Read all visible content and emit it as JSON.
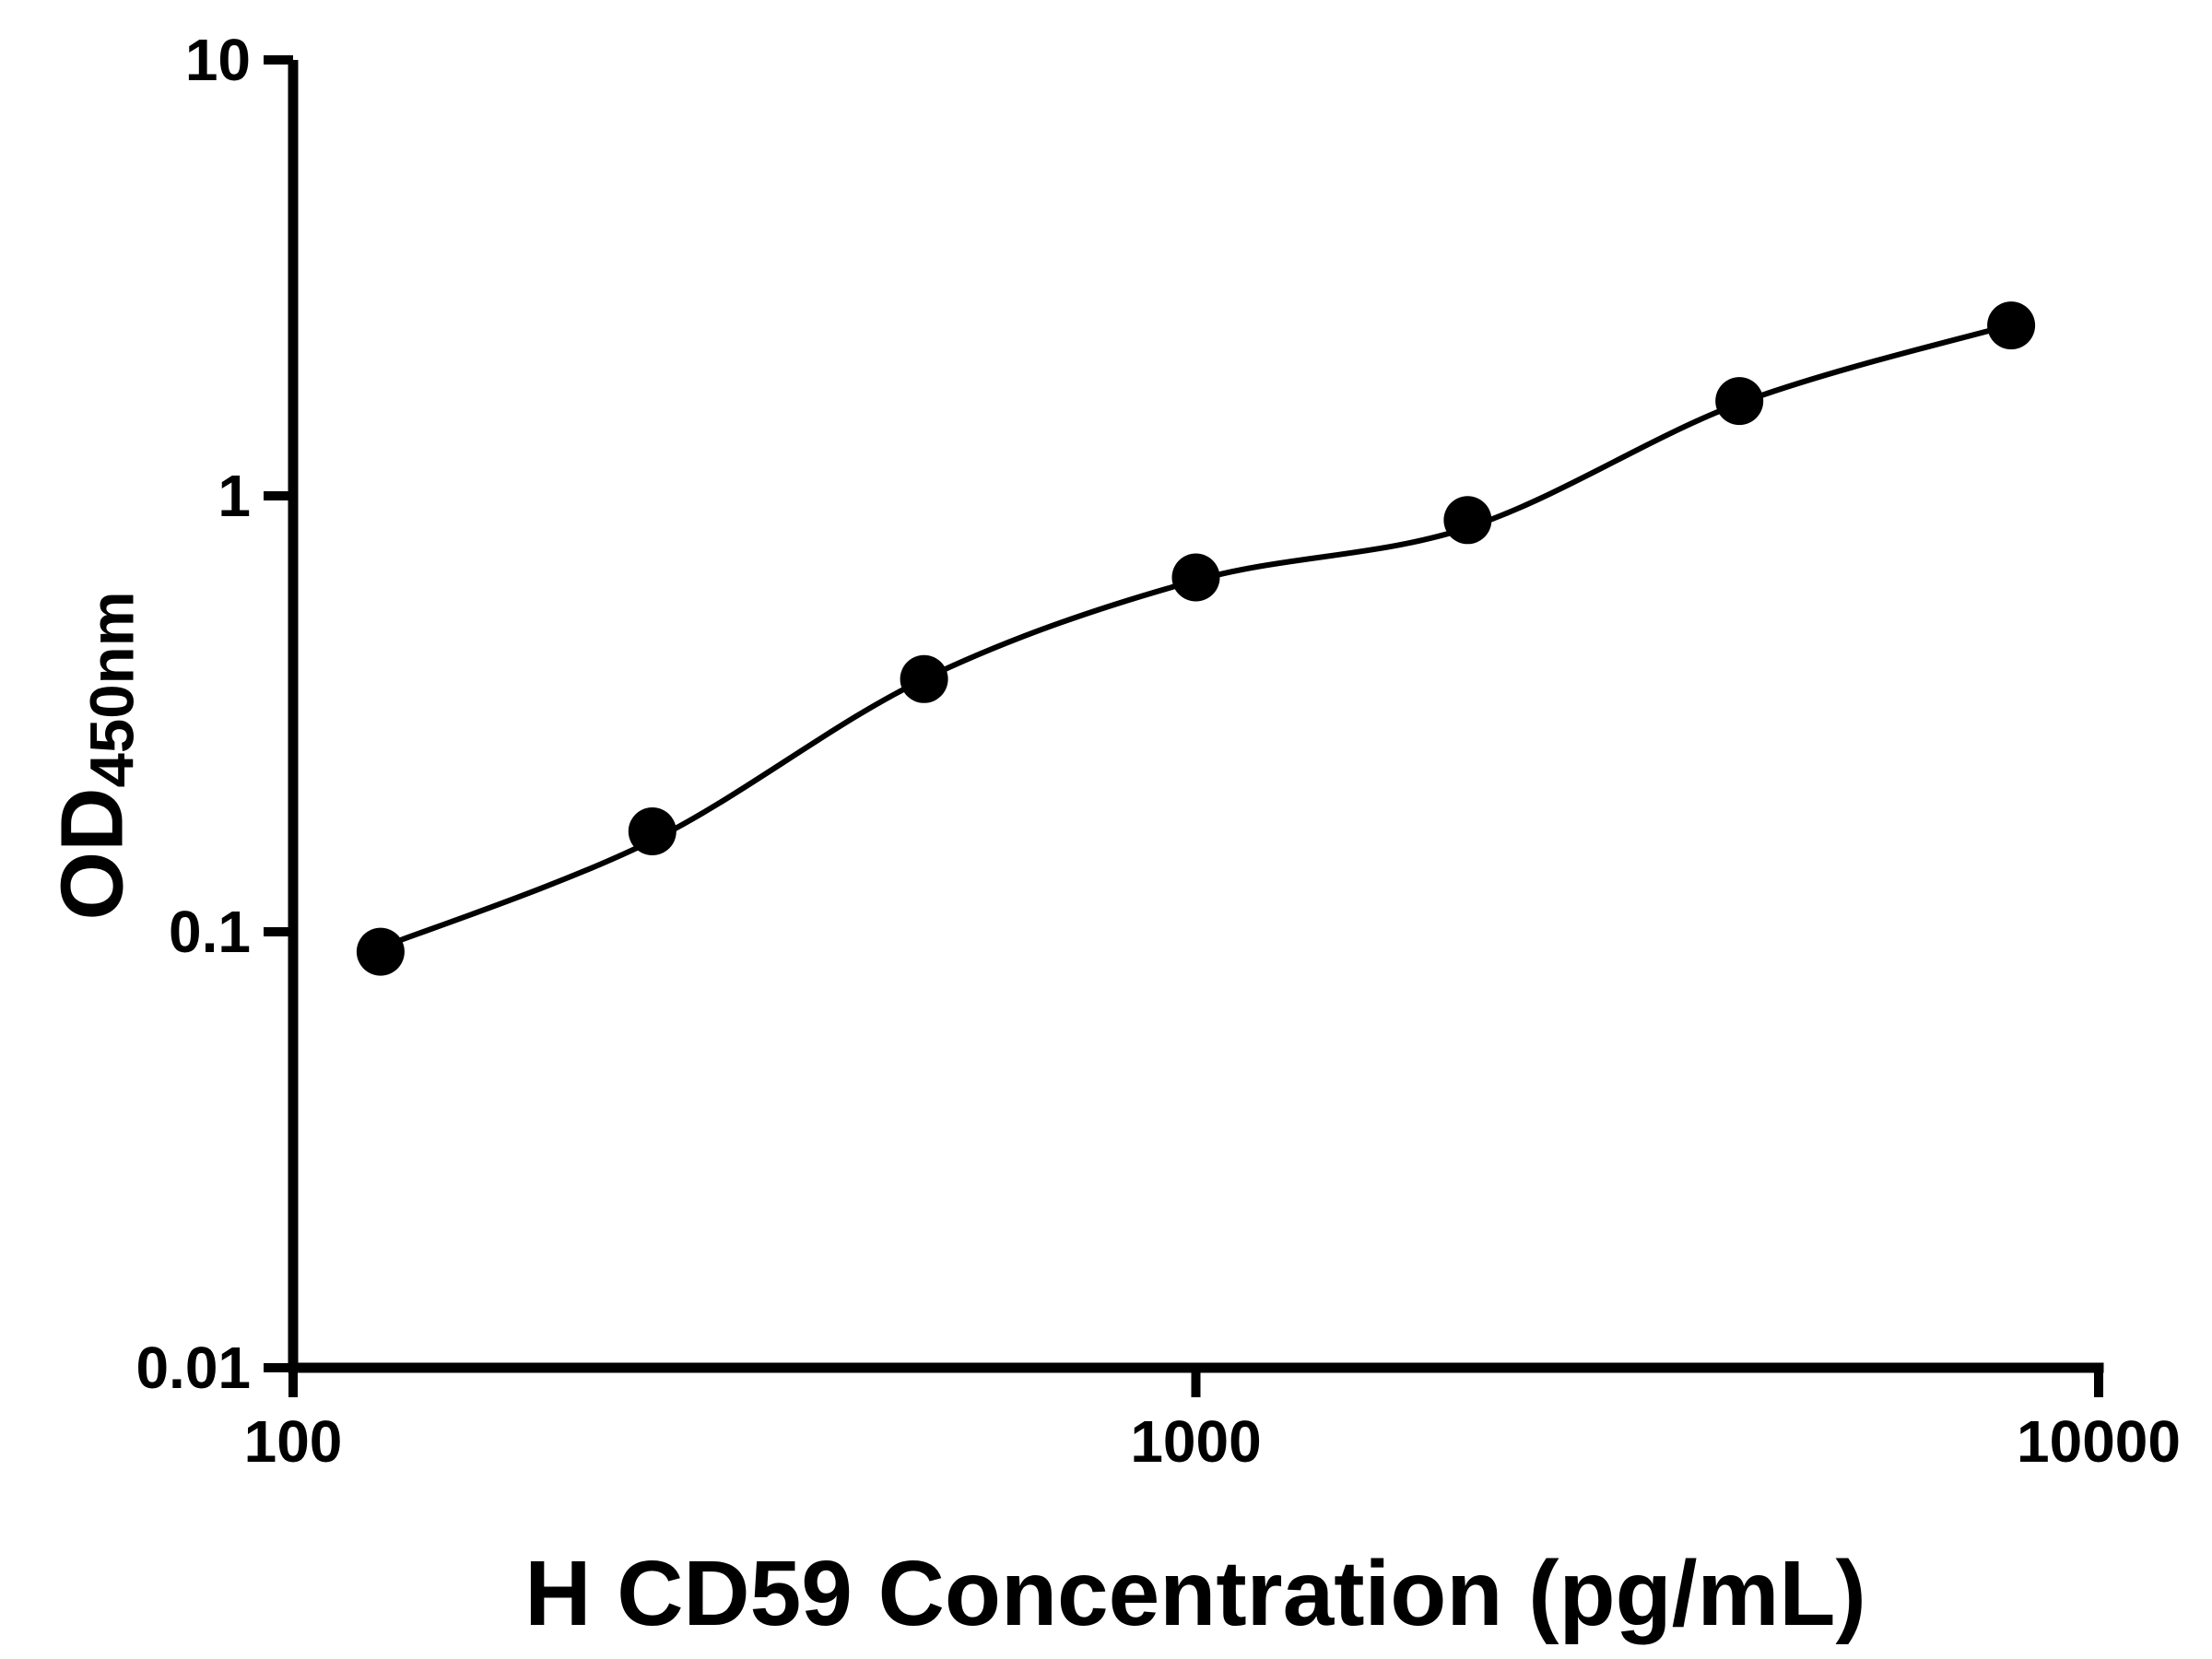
{
  "chart_data": {
    "type": "scatter",
    "title": "",
    "xlabel": "H CD59 Concentration (pg/mL)",
    "ylabel_main": "OD",
    "ylabel_sub": "450nm",
    "x_scale": "log",
    "y_scale": "log",
    "xlim": [
      100,
      10000
    ],
    "ylim": [
      0.01,
      10
    ],
    "x_ticks": [
      100,
      1000,
      10000
    ],
    "x_tick_labels": [
      "100",
      "1000",
      "10000"
    ],
    "y_ticks": [
      0.01,
      0.1,
      1,
      10
    ],
    "y_tick_labels": [
      "0.01",
      "0.1",
      "1",
      "10"
    ],
    "grid": false,
    "legend": false,
    "color": "#000000",
    "background": "#ffffff",
    "series": [
      {
        "name": "standard-points",
        "marker": "circle",
        "x": [
          125,
          250,
          500,
          1000,
          2000,
          4000,
          8000
        ],
        "y": [
          0.09,
          0.17,
          0.38,
          0.65,
          0.88,
          1.65,
          2.46
        ]
      }
    ],
    "fit_curve": {
      "name": "fitted-standard-curve",
      "x": [
        125,
        250,
        500,
        1000,
        2000,
        4000,
        8000
      ],
      "y": [
        0.092,
        0.162,
        0.38,
        0.64,
        0.845,
        1.63,
        2.47
      ]
    }
  }
}
